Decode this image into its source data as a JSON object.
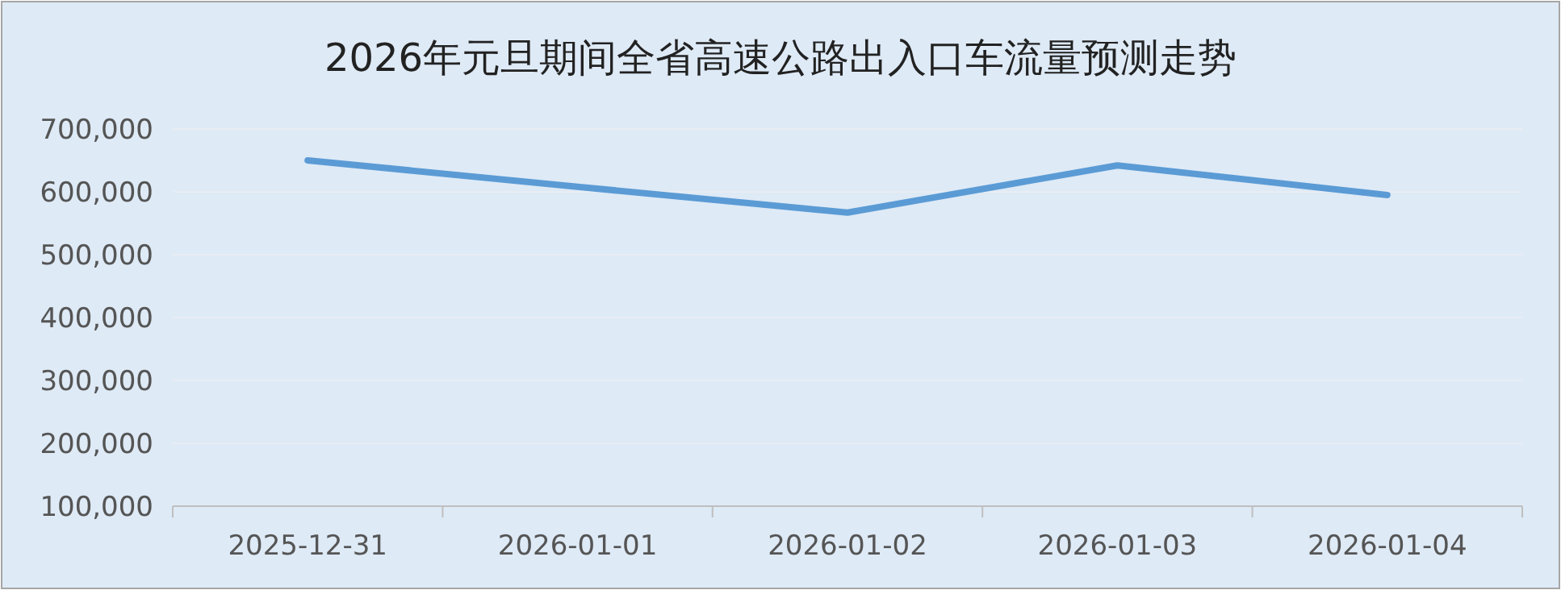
{
  "chart_data": {
    "type": "line",
    "title": "2026年元旦期间全省高速公路出入口车流量预测走势",
    "categories": [
      "2025-12-31",
      "2026-01-01",
      "2026-01-02",
      "2026-01-03",
      "2026-01-04"
    ],
    "series": [
      {
        "color": "#5b9bd5",
        "values": [
          650000,
          608000,
          567000,
          642000,
          595000
        ]
      }
    ],
    "ylim": [
      100000,
      700000
    ],
    "yticks": [
      {
        "value": 100000,
        "label": "100,000"
      },
      {
        "value": 200000,
        "label": "200,000"
      },
      {
        "value": 300000,
        "label": "300,000"
      },
      {
        "value": 400000,
        "label": "400,000"
      },
      {
        "value": 500000,
        "label": "500,000"
      },
      {
        "value": 600000,
        "label": "600,000"
      },
      {
        "value": 700000,
        "label": "700,000"
      }
    ],
    "grid": "y",
    "marker": "none",
    "line_style": "solid"
  }
}
